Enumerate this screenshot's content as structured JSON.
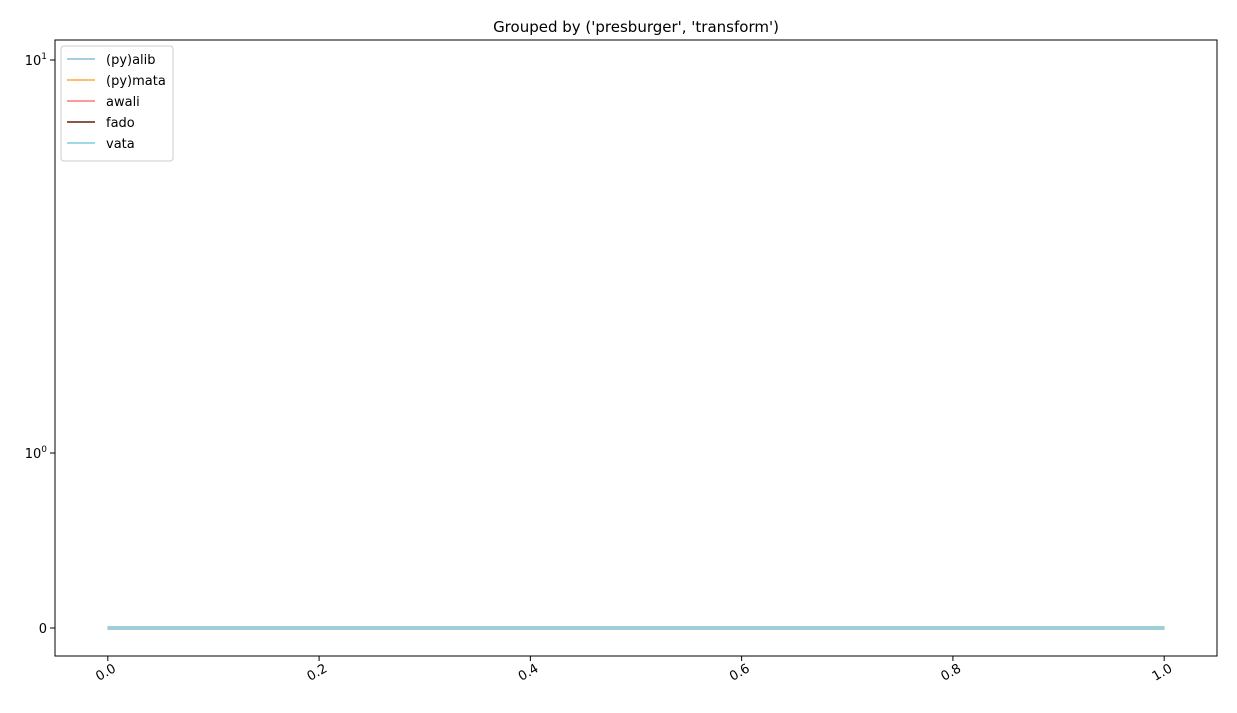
{
  "chart_data": {
    "type": "line",
    "title": "Grouped by ('presburger', 'transform')",
    "xlabel": "",
    "ylabel": "",
    "xlim": [
      -0.05,
      1.05
    ],
    "x_ticks": [
      0.0,
      0.2,
      0.4,
      0.6,
      0.8,
      1.0
    ],
    "x_tick_labels": [
      "0.0",
      "0.2",
      "0.4",
      "0.6",
      "0.8",
      "1.0"
    ],
    "y_scale": "symlog",
    "y_ticks": [
      {
        "value": 0,
        "base": "0",
        "exp": ""
      },
      {
        "value": 1,
        "base": "10",
        "exp": "0"
      },
      {
        "value": 10,
        "base": "10",
        "exp": "1"
      }
    ],
    "grid": false,
    "legend_position": "top-left",
    "series": [
      {
        "name": "(py)alib",
        "color": "#a6cee3",
        "x": [
          0.0,
          1.0
        ],
        "y": [
          0,
          0
        ]
      },
      {
        "name": "(py)mata",
        "color": "#fdbf6f",
        "x": [
          0.0,
          1.0
        ],
        "y": [
          0,
          0
        ]
      },
      {
        "name": "awali",
        "color": "#fb9a99",
        "x": [
          0.0,
          1.0
        ],
        "y": [
          0,
          0
        ]
      },
      {
        "name": "fado",
        "color": "#8c564b",
        "x": [
          0.0,
          1.0
        ],
        "y": [
          0,
          0
        ]
      },
      {
        "name": "vata",
        "color": "#9edae5",
        "x": [
          0.0,
          1.0
        ],
        "y": [
          0,
          0
        ]
      }
    ]
  }
}
